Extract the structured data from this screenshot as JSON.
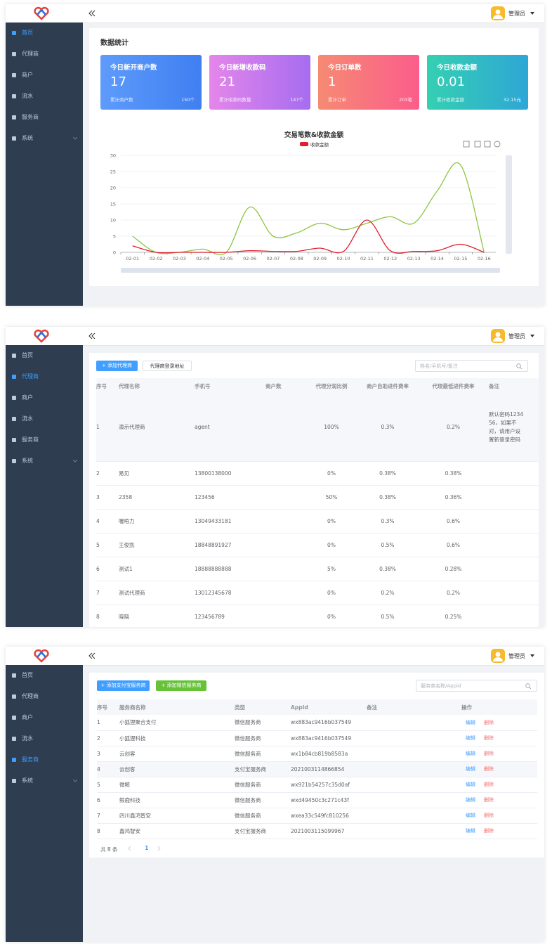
{
  "header": {
    "user": "管理员"
  },
  "menu": [
    "首页",
    "代理商",
    "商户",
    "流水",
    "服务商",
    "系统"
  ],
  "dashboard": {
    "active_menu": 0,
    "title": "数据统计",
    "cards": [
      {
        "title": "今日新开商户数",
        "value": 17,
        "sub_label": "累计商户数",
        "sub_value": "150个"
      },
      {
        "title": "今日新增收款码",
        "value": 21,
        "sub_label": "累计收款码数量",
        "sub_value": "147个"
      },
      {
        "title": "今日订单数",
        "value": 1,
        "sub_label": "累计订单",
        "sub_value": "203笔"
      },
      {
        "title": "今日收款金额",
        "value": 0.01,
        "sub_label": "累计收款金额",
        "sub_value": "32.15元"
      }
    ],
    "chart_data": {
      "type": "line",
      "title": "交易笔数&收款金额",
      "categories": [
        "02-01",
        "02-02",
        "02-03",
        "02-04",
        "02-05",
        "02-06",
        "02-07",
        "02-08",
        "02-09",
        "02-10",
        "02-11",
        "02-12",
        "02-13",
        "02-14",
        "02-15",
        "02-16"
      ],
      "series": [
        {
          "name": "收款金额",
          "color": "#e01f2a",
          "values": [
            2,
            0,
            0,
            0,
            0,
            0.5,
            0.3,
            0.3,
            1.3,
            0.3,
            10,
            0.5,
            0.3,
            0.5,
            2.5,
            0
          ]
        },
        {
          "color": "#8cc63f",
          "values": [
            5,
            0,
            0,
            1,
            0,
            14,
            5,
            6,
            9,
            7,
            9,
            11,
            9,
            19,
            27,
            0
          ]
        }
      ],
      "ylim": [
        0,
        30
      ],
      "yticks": [
        0,
        5,
        10,
        15,
        20,
        25,
        30
      ],
      "grid": true
    }
  },
  "agents": {
    "active_menu": 1,
    "buttons": [
      "+ 添加代理商",
      "代理商登录地址"
    ],
    "search_placeholder": "姓名/手机号/备注",
    "columns": [
      "序号",
      "代理名称",
      "手机号",
      "商户数",
      "代理分润比例",
      "商户自助进件费率",
      "代理最低进件费率",
      "备注"
    ],
    "rows": [
      [
        1,
        "演示代理商",
        "agent",
        null,
        "100%",
        "0.3%",
        "0.2%",
        "默认密码123456，如果不对，请用户设置新登录密码"
      ],
      [
        2,
        "易见",
        "13800138000",
        null,
        "0%",
        "0.38%",
        "0.38%",
        null
      ],
      [
        3,
        "2358",
        "123456",
        null,
        "50%",
        "0.38%",
        "0.36%",
        null
      ],
      [
        4,
        "喔唔力",
        "13049433181",
        null,
        "0%",
        "0.3%",
        "0.6%",
        null
      ],
      [
        5,
        "王俊凯",
        "18848891927",
        null,
        "0%",
        "0.5%",
        "0.6%",
        null
      ],
      [
        6,
        "测试1",
        "18888888888",
        null,
        "5%",
        "0.38%",
        "0.28%",
        null
      ],
      [
        7,
        "测试代理商",
        "13012345678",
        null,
        "0%",
        "0.2%",
        "0.2%",
        null
      ],
      [
        8,
        "晓晓",
        "123456789",
        null,
        "0%",
        "0.5%",
        "0.25%",
        null
      ]
    ]
  },
  "providers": {
    "active_menu": 4,
    "buttons": [
      "+ 添加支付宝服务商",
      "+ 添加微信服务商"
    ],
    "search_placeholder": "服务商名称/Appid",
    "columns": [
      "序号",
      "服务商名称",
      "类型",
      "AppId",
      "备注",
      "操作"
    ],
    "rows": [
      [
        1,
        "小狐狸聚合支付",
        "微信服务商",
        "wx883ac9416b037549",
        null
      ],
      [
        2,
        "小狐狸科技",
        "微信服务商",
        "wx883ac9416b037549",
        null
      ],
      [
        3,
        "云创客",
        "微信服务商",
        "wx1b84cb819b8583a",
        null
      ],
      [
        4,
        "云创客",
        "支付宝服务商",
        "2021003114866854",
        null
      ],
      [
        5,
        "微鲸",
        "微信服务商",
        "wx921b54257c35d0af",
        null
      ],
      [
        6,
        "鲸鹿科技",
        "微信服务商",
        "wxd49450c3c271c43f",
        null
      ],
      [
        7,
        "四川鑫鸿智安",
        "微信服务商",
        "wxea33c549fc810256",
        null
      ],
      [
        8,
        "鑫鸿智安",
        "支付宝服务商",
        "2021003115099967",
        null
      ]
    ],
    "actions": [
      "编辑",
      "删除"
    ],
    "pagination": {
      "total": "共 8 条",
      "page": 1
    }
  }
}
